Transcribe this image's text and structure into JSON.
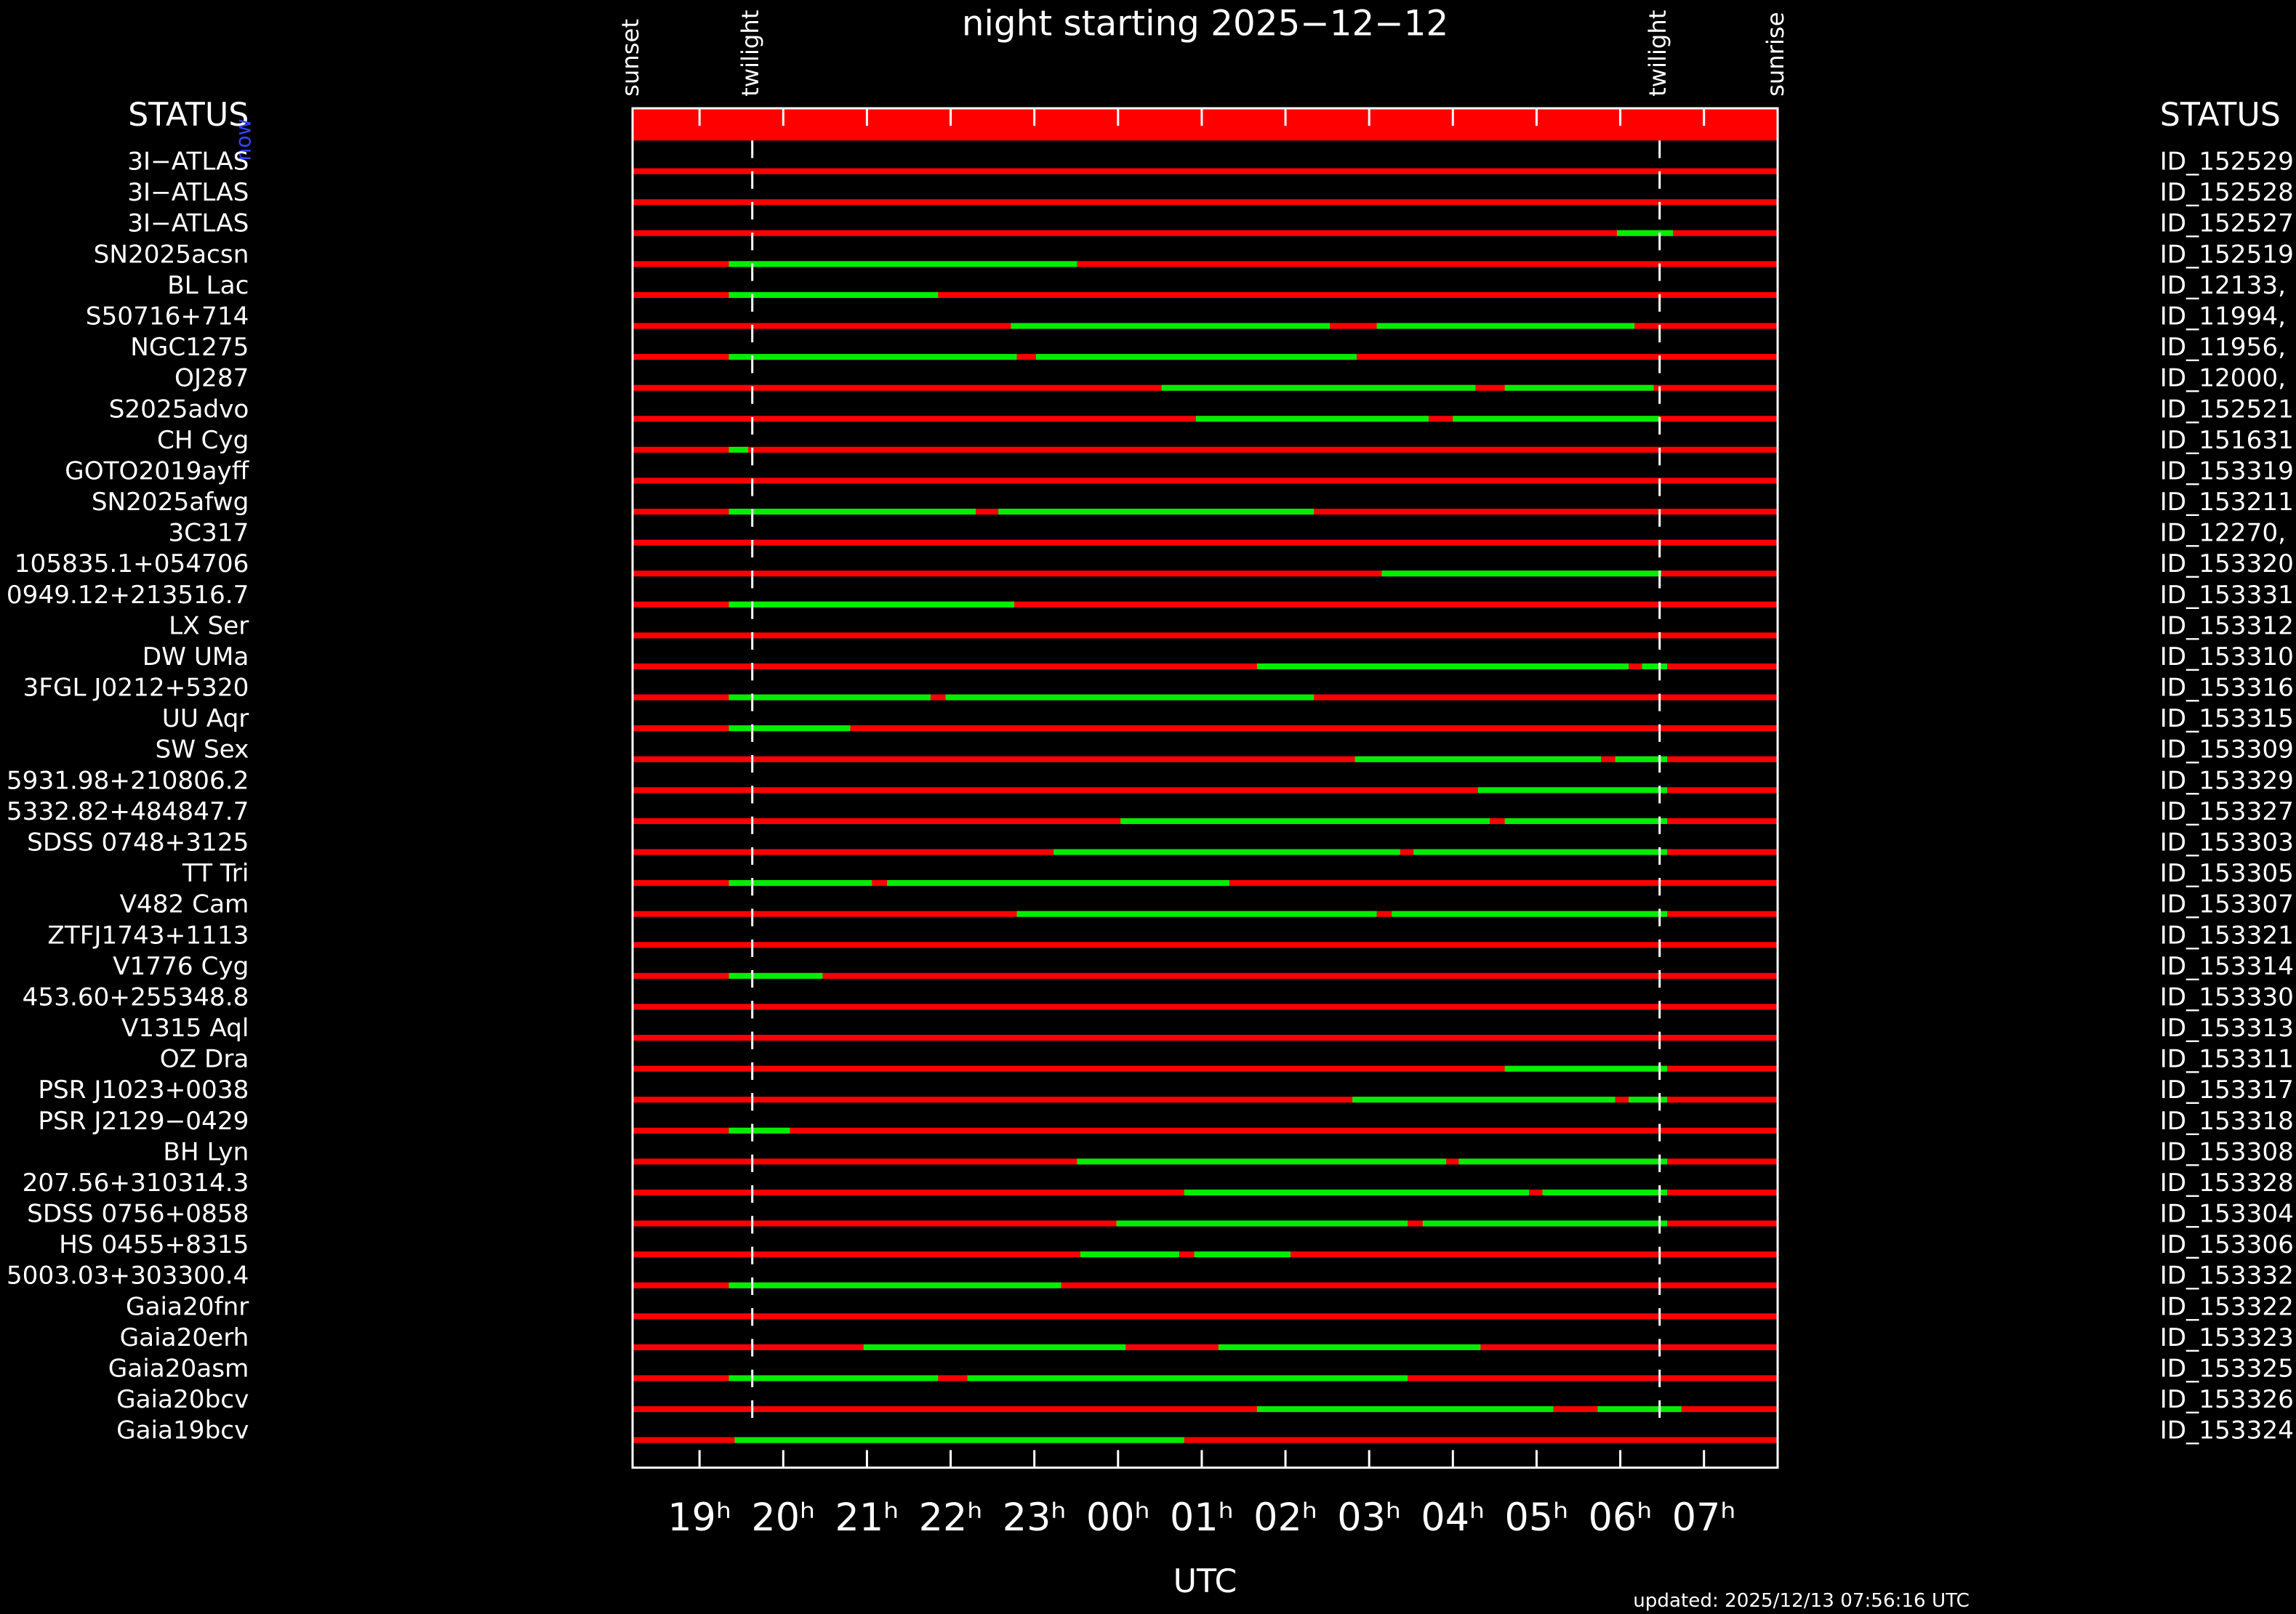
{
  "chart_data": {
    "type": "timeline",
    "title": "night starting 2025−12−12",
    "xlabel": "UTC",
    "status_left": "STATUS",
    "status_right": "STATUS",
    "now_label": "now",
    "updated": "updated: 2025/12/13 07:56:16 UTC",
    "xlim": [
      18.2,
      31.88
    ],
    "xticks": [
      {
        "value": 19,
        "label": "19ʰ"
      },
      {
        "value": 20,
        "label": "20ʰ"
      },
      {
        "value": 21,
        "label": "21ʰ"
      },
      {
        "value": 22,
        "label": "22ʰ"
      },
      {
        "value": 23,
        "label": "23ʰ"
      },
      {
        "value": 24,
        "label": "00ʰ"
      },
      {
        "value": 25,
        "label": "01ʰ"
      },
      {
        "value": 26,
        "label": "02ʰ"
      },
      {
        "value": 27,
        "label": "03ʰ"
      },
      {
        "value": 28,
        "label": "04ʰ"
      },
      {
        "value": 29,
        "label": "05ʰ"
      },
      {
        "value": 30,
        "label": "06ʰ"
      },
      {
        "value": 31,
        "label": "07ʰ"
      }
    ],
    "events": [
      {
        "label": "sunset",
        "value": 18.2
      },
      {
        "label": "twilight",
        "value": 19.63
      },
      {
        "label": "twilight",
        "value": 30.47
      },
      {
        "label": "sunrise",
        "value": 31.88
      }
    ],
    "bar_color": "#ff0000",
    "window_color": "#00ee00",
    "rows": [
      {
        "name": "3I−ATLAS",
        "id": "ID_152529",
        "windows": []
      },
      {
        "name": "3I−ATLAS",
        "id": "ID_152528",
        "windows": []
      },
      {
        "name": "3I−ATLAS",
        "id": "ID_152527",
        "windows": [
          [
            29.96,
            30.63
          ]
        ]
      },
      {
        "name": "SN2025acsn",
        "id": "ID_152519",
        "windows": [
          [
            19.35,
            23.51
          ]
        ]
      },
      {
        "name": "BL Lac",
        "id": "ID_12133,",
        "windows": [
          [
            19.35,
            21.85
          ]
        ]
      },
      {
        "name": "S50716+714",
        "id": "ID_11994,",
        "windows": [
          [
            22.72,
            26.53
          ],
          [
            27.09,
            30.17
          ]
        ]
      },
      {
        "name": "NGC1275",
        "id": "ID_11956,",
        "windows": [
          [
            19.35,
            22.79
          ],
          [
            23.02,
            26.85
          ]
        ]
      },
      {
        "name": "OJ287",
        "id": "ID_12000,",
        "windows": [
          [
            24.52,
            28.27
          ],
          [
            28.62,
            30.4
          ]
        ]
      },
      {
        "name": "S2025advo",
        "id": "ID_152521",
        "windows": [
          [
            24.93,
            27.71
          ],
          [
            28.0,
            30.47
          ]
        ]
      },
      {
        "name": "CH Cyg",
        "id": "ID_151631",
        "windows": [
          [
            19.35,
            19.58
          ]
        ]
      },
      {
        "name": "GOTO2019ayff",
        "id": "ID_153319",
        "windows": []
      },
      {
        "name": "SN2025afwg",
        "id": "ID_153211",
        "windows": [
          [
            19.35,
            22.3
          ],
          [
            22.57,
            26.34
          ]
        ]
      },
      {
        "name": "3C317",
        "id": "ID_12270,",
        "windows": []
      },
      {
        "name": "105835.1+054706",
        "id": "ID_153320",
        "windows": [
          [
            27.15,
            30.49
          ]
        ]
      },
      {
        "name": "0949.12+213516.7",
        "id": "ID_153331",
        "windows": [
          [
            19.35,
            22.76
          ]
        ]
      },
      {
        "name": "LX Ser",
        "id": "ID_153312",
        "windows": []
      },
      {
        "name": "DW UMa",
        "id": "ID_153310",
        "windows": [
          [
            25.66,
            30.1
          ],
          [
            30.26,
            30.56
          ]
        ]
      },
      {
        "name": "3FGL J0212+5320",
        "id": "ID_153316",
        "windows": [
          [
            19.35,
            21.76
          ],
          [
            21.94,
            26.34
          ]
        ]
      },
      {
        "name": "UU Aqr",
        "id": "ID_153315",
        "windows": [
          [
            19.35,
            20.8
          ]
        ]
      },
      {
        "name": "SW Sex",
        "id": "ID_153309",
        "windows": [
          [
            26.83,
            29.77
          ],
          [
            29.94,
            30.56
          ]
        ]
      },
      {
        "name": "5931.98+210806.2",
        "id": "ID_153329",
        "windows": [
          [
            28.3,
            30.56
          ]
        ]
      },
      {
        "name": "5332.82+484847.7",
        "id": "ID_153327",
        "windows": [
          [
            24.03,
            28.44
          ],
          [
            28.62,
            30.56
          ]
        ]
      },
      {
        "name": "SDSS 0748+3125",
        "id": "ID_153303",
        "windows": [
          [
            23.23,
            27.37
          ],
          [
            27.53,
            30.56
          ]
        ]
      },
      {
        "name": "TT Tri",
        "id": "ID_153305",
        "windows": [
          [
            19.35,
            21.06
          ],
          [
            21.24,
            25.33
          ]
        ]
      },
      {
        "name": "V482 Cam",
        "id": "ID_153307",
        "windows": [
          [
            22.79,
            27.09
          ],
          [
            27.27,
            30.56
          ]
        ]
      },
      {
        "name": "ZTFJ1743+1113",
        "id": "ID_153321",
        "windows": []
      },
      {
        "name": "V1776 Cyg",
        "id": "ID_153314",
        "windows": [
          [
            19.35,
            20.47
          ]
        ]
      },
      {
        "name": "453.60+255348.8",
        "id": "ID_153330",
        "windows": []
      },
      {
        "name": "V1315 Aql",
        "id": "ID_153313",
        "windows": []
      },
      {
        "name": "OZ Dra",
        "id": "ID_153311",
        "windows": [
          [
            28.62,
            30.56
          ]
        ]
      },
      {
        "name": "PSR J1023+0038",
        "id": "ID_153317",
        "windows": [
          [
            26.8,
            29.94
          ],
          [
            30.1,
            30.56
          ]
        ]
      },
      {
        "name": "PSR J2129−0429",
        "id": "ID_153318",
        "windows": [
          [
            19.35,
            20.08
          ]
        ]
      },
      {
        "name": "BH Lyn",
        "id": "ID_153308",
        "windows": [
          [
            23.51,
            27.92
          ],
          [
            28.07,
            30.56
          ]
        ]
      },
      {
        "name": "207.56+310314.3",
        "id": "ID_153328",
        "windows": [
          [
            24.79,
            28.91
          ],
          [
            29.07,
            30.56
          ]
        ]
      },
      {
        "name": "SDSS 0756+0858",
        "id": "ID_153304",
        "windows": [
          [
            23.98,
            27.46
          ],
          [
            27.64,
            30.56
          ]
        ]
      },
      {
        "name": "HS 0455+8315",
        "id": "ID_153306",
        "windows": [
          [
            23.55,
            24.73
          ],
          [
            24.91,
            26.06
          ]
        ]
      },
      {
        "name": "5003.03+303300.4",
        "id": "ID_153332",
        "windows": [
          [
            19.35,
            23.32
          ]
        ]
      },
      {
        "name": "Gaia20fnr",
        "id": "ID_153322",
        "windows": []
      },
      {
        "name": "Gaia20erh",
        "id": "ID_153323",
        "windows": [
          [
            20.96,
            24.09
          ],
          [
            25.2,
            28.33
          ]
        ]
      },
      {
        "name": "Gaia20asm",
        "id": "ID_153325",
        "windows": [
          [
            19.35,
            21.85
          ],
          [
            22.2,
            27.46
          ]
        ]
      },
      {
        "name": "Gaia20bcv",
        "id": "ID_153326",
        "windows": [
          [
            25.66,
            29.2
          ],
          [
            29.73,
            30.73
          ]
        ]
      },
      {
        "name": "Gaia19bcv",
        "id": "ID_153324",
        "windows": [
          [
            19.42,
            24.79
          ]
        ]
      }
    ]
  }
}
